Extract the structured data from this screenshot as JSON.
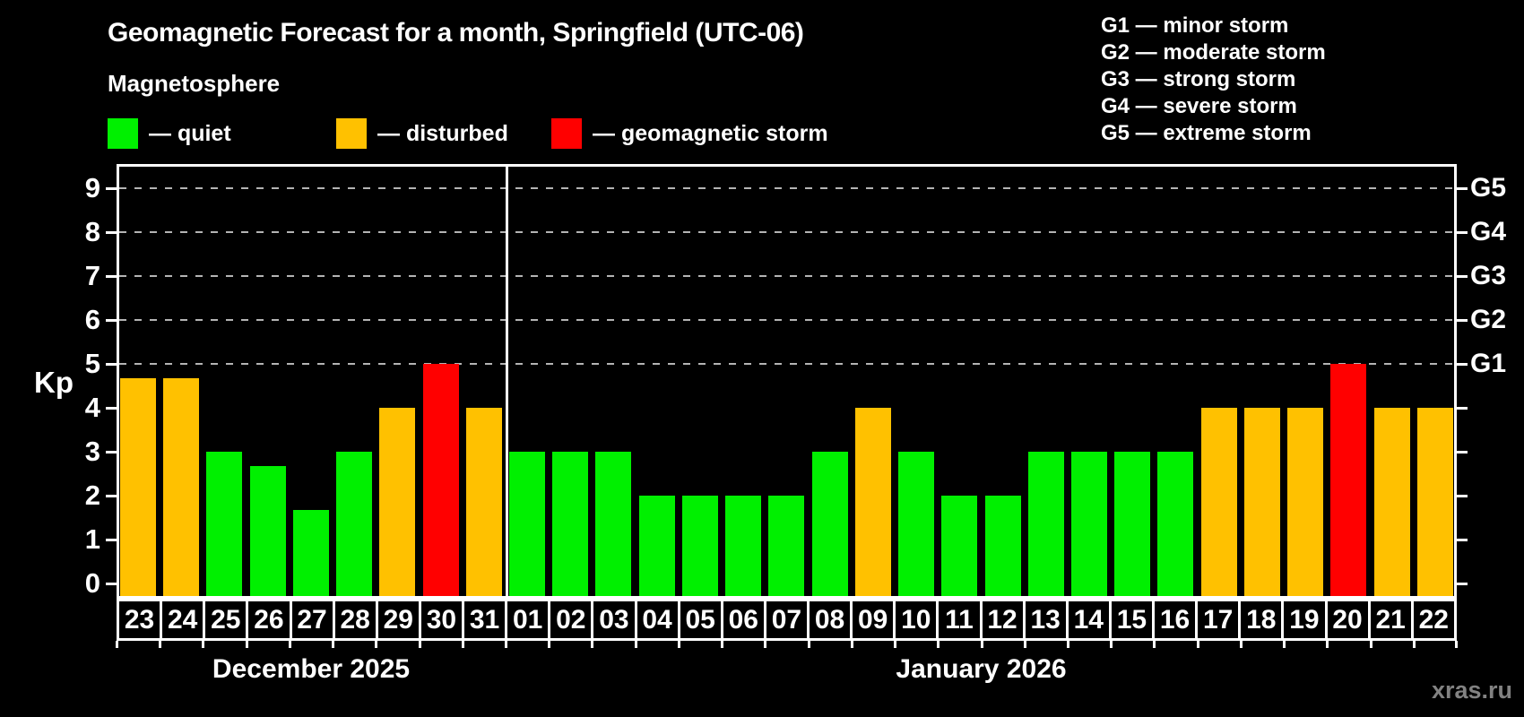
{
  "legend": {
    "items": [
      {
        "key": "quiet",
        "label": "— quiet",
        "color": "#00f000"
      },
      {
        "key": "disturbed",
        "label": "— disturbed",
        "color": "#ffc100"
      },
      {
        "key": "storm",
        "label": "— geomagnetic storm",
        "color": "#ff0000"
      }
    ]
  },
  "g_scale_legend": {
    "lines": [
      "G1 — minor storm",
      "G2 — moderate storm",
      "G3 — strong storm",
      "G4 — severe storm",
      "G5 — extreme storm"
    ]
  },
  "watermark": "xras.ru",
  "chart_data": {
    "type": "bar",
    "title": "Geomagnetic Forecast for a month, Springfield (UTC-06)",
    "subtitle": "Magnetosphere",
    "ylabel": "Kp",
    "ylim": [
      0,
      9
    ],
    "y_ticks": [
      0,
      1,
      2,
      3,
      4,
      5,
      6,
      7,
      8,
      9
    ],
    "gridlines_at": [
      5,
      6,
      7,
      8,
      9
    ],
    "grid": "dashed horizontal at storm levels",
    "legend_position": "top-left (status colors), top-right (G scale)",
    "right_axis_labels": [
      {
        "label": "G1",
        "kp": 5
      },
      {
        "label": "G2",
        "kp": 6
      },
      {
        "label": "G3",
        "kp": 7
      },
      {
        "label": "G4",
        "kp": 8
      },
      {
        "label": "G5",
        "kp": 9
      }
    ],
    "colors": {
      "quiet": "#00f000",
      "disturbed": "#ffc100",
      "storm": "#ff0000"
    },
    "months": [
      {
        "label": "December 2025",
        "days": [
          {
            "day": "23",
            "kp": 4.67,
            "status": "disturbed"
          },
          {
            "day": "24",
            "kp": 4.67,
            "status": "disturbed"
          },
          {
            "day": "25",
            "kp": 3,
            "status": "quiet"
          },
          {
            "day": "26",
            "kp": 2.67,
            "status": "quiet"
          },
          {
            "day": "27",
            "kp": 1.67,
            "status": "quiet"
          },
          {
            "day": "28",
            "kp": 3,
            "status": "quiet"
          },
          {
            "day": "29",
            "kp": 4,
            "status": "disturbed"
          },
          {
            "day": "30",
            "kp": 5,
            "status": "storm"
          },
          {
            "day": "31",
            "kp": 4,
            "status": "disturbed"
          }
        ]
      },
      {
        "label": "January 2026",
        "days": [
          {
            "day": "01",
            "kp": 3,
            "status": "quiet"
          },
          {
            "day": "02",
            "kp": 3,
            "status": "quiet"
          },
          {
            "day": "03",
            "kp": 3,
            "status": "quiet"
          },
          {
            "day": "04",
            "kp": 2,
            "status": "quiet"
          },
          {
            "day": "05",
            "kp": 2,
            "status": "quiet"
          },
          {
            "day": "06",
            "kp": 2,
            "status": "quiet"
          },
          {
            "day": "07",
            "kp": 2,
            "status": "quiet"
          },
          {
            "day": "08",
            "kp": 3,
            "status": "quiet"
          },
          {
            "day": "09",
            "kp": 4,
            "status": "disturbed"
          },
          {
            "day": "10",
            "kp": 3,
            "status": "quiet"
          },
          {
            "day": "11",
            "kp": 2,
            "status": "quiet"
          },
          {
            "day": "12",
            "kp": 2,
            "status": "quiet"
          },
          {
            "day": "13",
            "kp": 3,
            "status": "quiet"
          },
          {
            "day": "14",
            "kp": 3,
            "status": "quiet"
          },
          {
            "day": "15",
            "kp": 3,
            "status": "quiet"
          },
          {
            "day": "16",
            "kp": 3,
            "status": "quiet"
          },
          {
            "day": "17",
            "kp": 4,
            "status": "disturbed"
          },
          {
            "day": "18",
            "kp": 4,
            "status": "disturbed"
          },
          {
            "day": "19",
            "kp": 4,
            "status": "disturbed"
          },
          {
            "day": "20",
            "kp": 5,
            "status": "storm"
          },
          {
            "day": "21",
            "kp": 4,
            "status": "disturbed"
          },
          {
            "day": "22",
            "kp": 4,
            "status": "disturbed"
          }
        ]
      }
    ]
  }
}
